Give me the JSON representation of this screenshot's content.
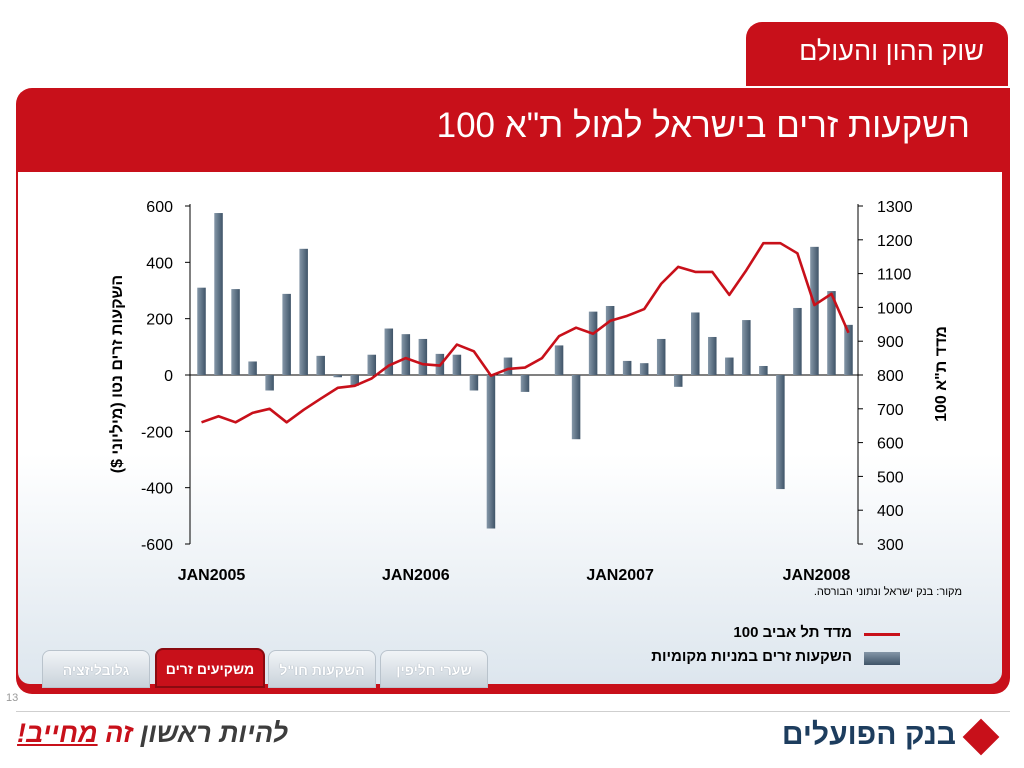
{
  "header": {
    "section_title": "שוק ההון והעולם",
    "title": "השקעות זרים בישראל למול ת\"א 100"
  },
  "chart_data": {
    "type": "bar+line",
    "left_axis": {
      "label": "השקעות זרים נטו (מיליוני $)",
      "ylim": [
        -600,
        600
      ],
      "ticks": [
        "600",
        "400",
        "200",
        "0",
        "-200",
        "-400",
        "-600"
      ],
      "tick_values": [
        600,
        400,
        200,
        0,
        -200,
        -400,
        -600
      ]
    },
    "right_axis": {
      "label": "מדד ת\"א 100",
      "ylim": [
        300,
        1300
      ],
      "ticks": [
        "1300",
        "1200",
        "1100",
        "1000",
        "900",
        "800",
        "700",
        "600",
        "500",
        "400",
        "300"
      ],
      "tick_values": [
        1300,
        1200,
        1100,
        1000,
        900,
        800,
        700,
        600,
        500,
        400,
        300
      ]
    },
    "x_labels": [
      "JAN2005",
      "JAN2006",
      "JAN2007",
      "JAN2008"
    ],
    "x_label_index": [
      0,
      12,
      24,
      36
    ],
    "series": [
      {
        "name": "השקעות זרים במניות מקומיות",
        "kind": "bar",
        "axis": "left",
        "color": "#4a5d70",
        "values": [
          310,
          575,
          305,
          48,
          -55,
          288,
          448,
          68,
          -8,
          -38,
          72,
          165,
          145,
          128,
          75,
          72,
          -55,
          -545,
          62,
          -60,
          0,
          105,
          -228,
          225,
          245,
          50,
          42,
          128,
          -42,
          222,
          135,
          62,
          195,
          32,
          -405,
          238,
          455,
          298,
          178
        ]
      },
      {
        "name": "מדד תל אביב 100",
        "kind": "line",
        "axis": "right",
        "color": "#c8101a",
        "values": [
          660,
          678,
          660,
          688,
          700,
          660,
          697,
          730,
          762,
          768,
          790,
          828,
          850,
          832,
          828,
          890,
          870,
          798,
          818,
          822,
          850,
          915,
          940,
          922,
          960,
          975,
          995,
          1070,
          1120,
          1105,
          1105,
          1037,
          1110,
          1190,
          1190,
          1160,
          1007,
          1040,
          925
        ]
      }
    ]
  },
  "source_note": "מקור: בנק ישראל ונתוני הבורסה.",
  "legend": {
    "line_label": "מדד תל אביב 100",
    "bar_label": "השקעות זרים במניות מקומיות"
  },
  "nav_tabs": [
    "שערי חליפין",
    "השקעות חו\"ל",
    "משקיעים זרים",
    "גלובליזציה"
  ],
  "page_number": "13",
  "footer": {
    "slogan_part1": "להיות ראשון",
    "slogan_part2": "זה",
    "slogan_part3": "מחייב!",
    "brand_name": "בנק הפועלים"
  }
}
